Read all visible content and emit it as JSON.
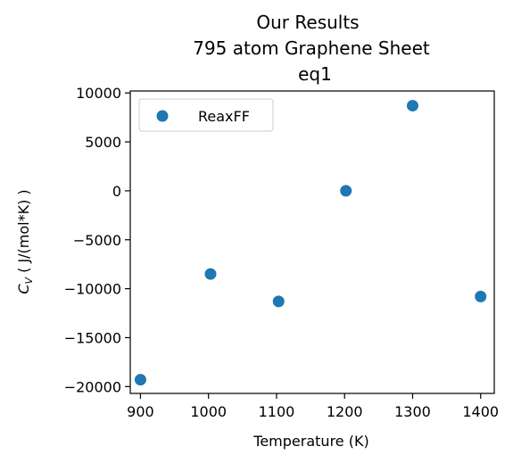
{
  "chart_data": {
    "type": "scatter",
    "title_lines": [
      "Our Results",
      "795 atom Graphene Sheet",
      "eq1"
    ],
    "xlabel": "Temperature (K)",
    "ylabel_main": "C",
    "ylabel_sub": "V",
    "ylabel_rest": " ( J/(mol*K) )",
    "xlim": [
      885,
      1420
    ],
    "ylim": [
      -20700,
      10200
    ],
    "xticks": [
      900,
      1000,
      1100,
      1200,
      1300,
      1400
    ],
    "yticks": [
      10000,
      5000,
      0,
      -5000,
      -10000,
      -15000,
      -20000
    ],
    "grid": false,
    "legend_position": "top-left",
    "series": [
      {
        "name": "ReaxFF",
        "color": "#1f77b4",
        "marker": "circle",
        "x": [
          900,
          1003,
          1103,
          1202,
          1300,
          1400
        ],
        "y": [
          -19300,
          -8500,
          -11300,
          0,
          8700,
          -10800
        ]
      }
    ]
  }
}
